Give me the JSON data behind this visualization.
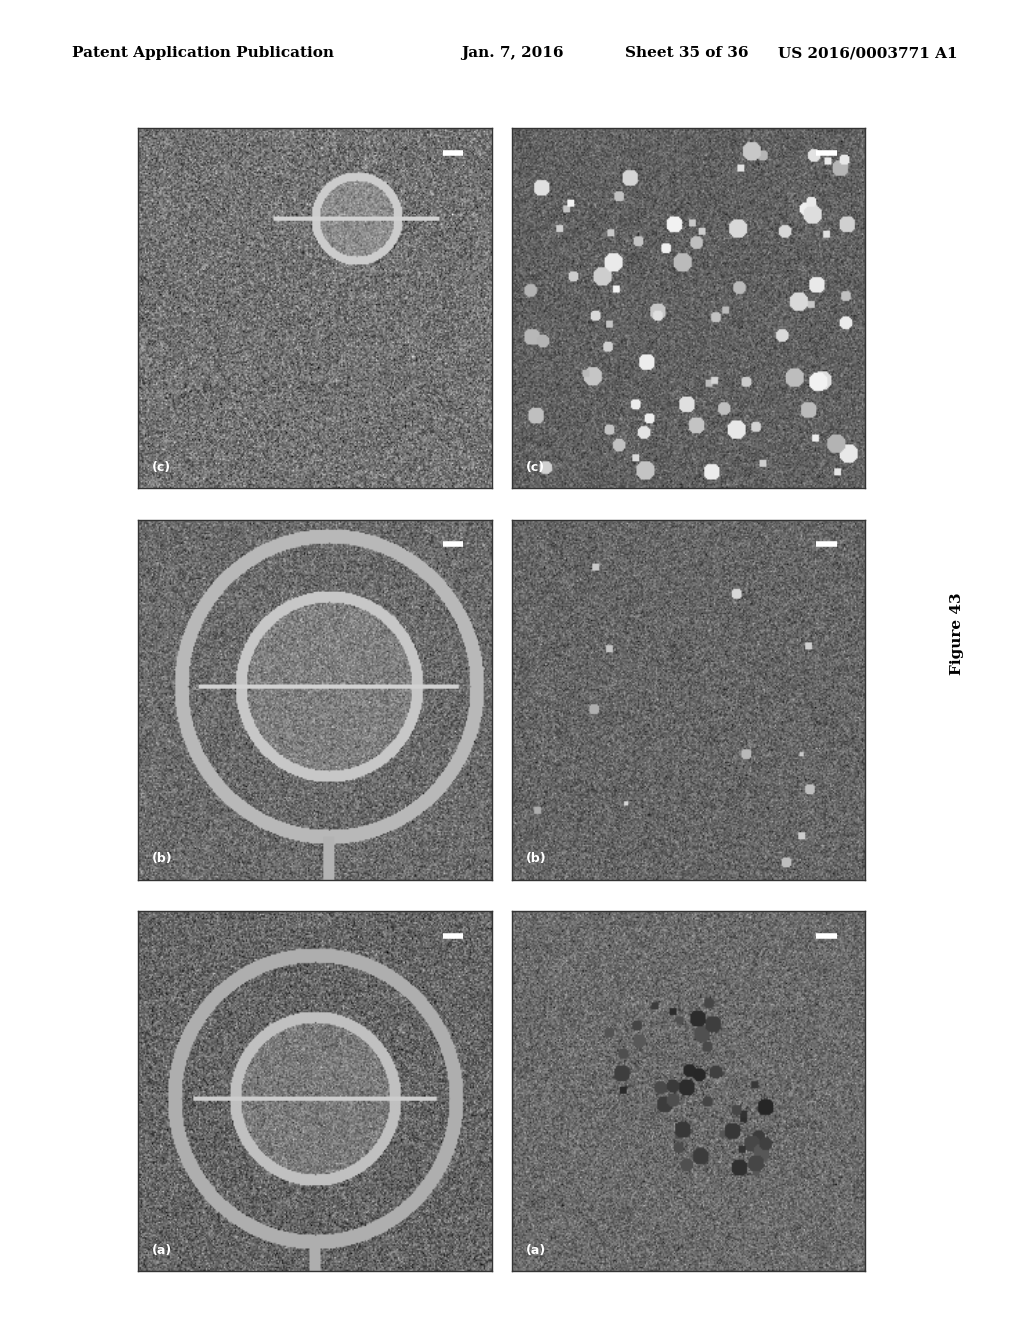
{
  "background_color": "#ffffff",
  "header_text": "Patent Application Publication",
  "header_date": "Jan. 7, 2016",
  "header_sheet": "Sheet 35 of 36",
  "header_patent": "US 2016/0003771 A1",
  "figure_label": "Figure 43",
  "grid_rows": 3,
  "grid_cols": 2,
  "panel_labels_left": [
    "(c)",
    "(b)",
    "(a)"
  ],
  "panel_labels_right": [
    "(c)",
    "(b)",
    "(a)"
  ]
}
